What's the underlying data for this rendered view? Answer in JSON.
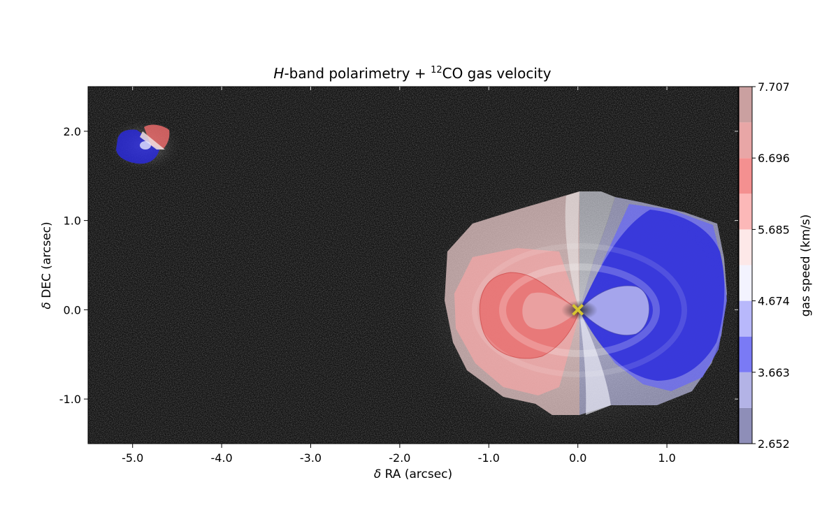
{
  "chart_data": {
    "type": "heatmap",
    "title": {
      "italic_part": "H",
      "part2": "-band polarimetry + ",
      "superscript": "12",
      "part3": "CO gas velocity"
    },
    "xlabel": {
      "symbol": "δ",
      "text": " RA (arcsec)"
    },
    "ylabel": {
      "symbol": "δ",
      "text": " DEC (arcsec)"
    },
    "xlim": [
      -5.5,
      1.8
    ],
    "ylim": [
      -1.5,
      2.5
    ],
    "x_ticks": [
      {
        "value": -5.0,
        "label": "-5.0"
      },
      {
        "value": -4.0,
        "label": "-4.0"
      },
      {
        "value": -3.0,
        "label": "-3.0"
      },
      {
        "value": -2.0,
        "label": "-2.0"
      },
      {
        "value": -1.0,
        "label": "-1.0"
      },
      {
        "value": 0.0,
        "label": "0.0"
      },
      {
        "value": 1.0,
        "label": "1.0"
      }
    ],
    "y_ticks": [
      {
        "value": -1.0,
        "label": "-1.0"
      },
      {
        "value": 0.0,
        "label": "0.0"
      },
      {
        "value": 1.0,
        "label": "1.0"
      },
      {
        "value": 2.0,
        "label": "2.0"
      }
    ],
    "background": "grayscale polarized intensity image",
    "colorbar": {
      "label": "gas speed (km/s)",
      "range": [
        2.652,
        7.707
      ],
      "levels": 10,
      "ticks": [
        {
          "value": 2.652,
          "label": "2.652"
        },
        {
          "value": 3.663,
          "label": "3.663"
        },
        {
          "value": 4.674,
          "label": "4.674"
        },
        {
          "value": 5.685,
          "label": "5.685"
        },
        {
          "value": 6.696,
          "label": "6.696"
        },
        {
          "value": 7.707,
          "label": "7.707"
        }
      ],
      "colors": [
        "#8e8eb8",
        "#b3b3e6",
        "#7a7af5",
        "#b8b8fb",
        "#f3f3fe",
        "#fde8e8",
        "#fcb8b8",
        "#f49090",
        "#e8a6a6",
        "#caa0a0"
      ],
      "colormap": "bwr"
    },
    "markers": [
      {
        "x": 0.0,
        "y": 0.0,
        "symbol": "x",
        "color": "#d6c630"
      }
    ],
    "regions": [
      {
        "name": "main disk",
        "center": [
          0.0,
          0.0
        ],
        "velocity_pattern": "red west, blue east, white north-south band"
      },
      {
        "name": "companion",
        "center": [
          -4.85,
          1.85
        ],
        "velocity_pattern": "blue west, red north-east"
      }
    ]
  }
}
